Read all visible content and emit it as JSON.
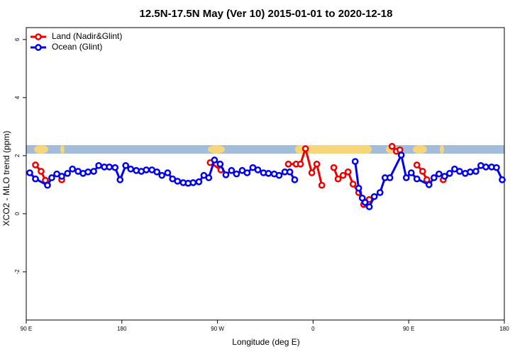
{
  "chart_data": {
    "type": "line",
    "title": "12.5N-17.5N May (Ver 10)   2015-01-01 to 2020-12-18",
    "x_label": "Longitude (deg E)",
    "y_label": "XCO2 - MLO trend (ppm)",
    "xlim": [
      90,
      540
    ],
    "ylim": [
      -3.66,
      6.41
    ],
    "xticks": [
      {
        "value": 90,
        "label": "90 E"
      },
      180,
      {
        "value": 270,
        "label": "90 W"
      },
      {
        "value": 360,
        "label": "0"
      },
      {
        "value": 450,
        "label": "90 E"
      },
      {
        "value": 540,
        "label": "180"
      }
    ],
    "yticks": [
      -2,
      0,
      2,
      4,
      6
    ],
    "legend": "top-left",
    "series": [
      {
        "name": "Land (Nadir&Glint)",
        "color": "#ee0000",
        "x": [
          98.7,
          104,
          108,
          null,
          123.4,
          null,
          263.2,
          273.2,
          null,
          336.7,
          344,
          348.1,
          352.8,
          358.8,
          363.5,
          368.2,
          null,
          379.5,
          383.5,
          388.2,
          392.9,
          397.6,
          402.9,
          407.6,
          412.9,
          null,
          434.3,
          438.4,
          441.7,
          null,
          457.7,
          463.1,
          467.1,
          null,
          482.5
        ],
        "values": [
          1.68,
          1.46,
          1.15,
          null,
          1.17,
          null,
          1.76,
          1.51,
          null,
          1.71,
          1.71,
          1.71,
          2.24,
          1.41,
          1.71,
          0.98,
          null,
          1.59,
          1.2,
          1.32,
          1.44,
          1.02,
          0.73,
          0.32,
          0.49,
          null,
          2.32,
          2.15,
          2.2,
          null,
          1.68,
          1.46,
          1.17,
          null,
          1.17
        ]
      },
      {
        "name": "Ocean (Glint)",
        "color": "#0000ee",
        "x": [
          93.3,
          98.7,
          110,
          114,
          118.8,
          123.4,
          128.8,
          133.5,
          138.8,
          143.5,
          148.2,
          153.5,
          158.2,
          163.5,
          168.2,
          173.6,
          178.3,
          183.6,
          188.3,
          193.6,
          198.3,
          203,
          208.3,
          213,
          217.7,
          223.1,
          227.7,
          232.4,
          237.8,
          242.4,
          247.1,
          252.5,
          257.2,
          261.8,
          267.2,
          272.5,
          277.9,
          283.2,
          287.9,
          293.3,
          297.9,
          303.3,
          308,
          313.3,
          318,
          323.4,
          328,
          333.4,
          338.1,
          342.7,
          null,
          399.6,
          402.9,
          406.3,
          408.9,
          412.9,
          417.6,
          423,
          427.7,
          432.3,
          443,
          447.7,
          452.4,
          457.7,
          469.1,
          473.8,
          478.5,
          483.8,
          488.5,
          493.2,
          497.9,
          503.2,
          507.9,
          513.2,
          517.9,
          522.6,
          528,
          532.6,
          538
        ],
        "values": [
          1.41,
          1.2,
          0.98,
          1.24,
          1.37,
          1.29,
          1.39,
          1.54,
          1.46,
          1.39,
          1.44,
          1.46,
          1.66,
          1.61,
          1.61,
          1.59,
          1.17,
          1.66,
          1.54,
          1.49,
          1.46,
          1.51,
          1.51,
          1.44,
          1.32,
          1.41,
          1.2,
          1.12,
          1.07,
          1.05,
          1.07,
          1.1,
          1.32,
          1.24,
          1.85,
          1.71,
          1.34,
          1.49,
          1.37,
          1.49,
          1.41,
          1.59,
          1.51,
          1.41,
          1.39,
          1.37,
          1.32,
          1.44,
          1.44,
          1.17,
          null,
          1.8,
          0.88,
          0.54,
          0.39,
          0.24,
          0.59,
          0.73,
          1.24,
          1.24,
          2.02,
          1.24,
          1.41,
          1.2,
          1.0,
          1.24,
          1.37,
          1.29,
          1.39,
          1.54,
          1.46,
          1.39,
          1.44,
          1.46,
          1.66,
          1.61,
          1.61,
          1.59,
          1.17
        ]
      }
    ]
  }
}
